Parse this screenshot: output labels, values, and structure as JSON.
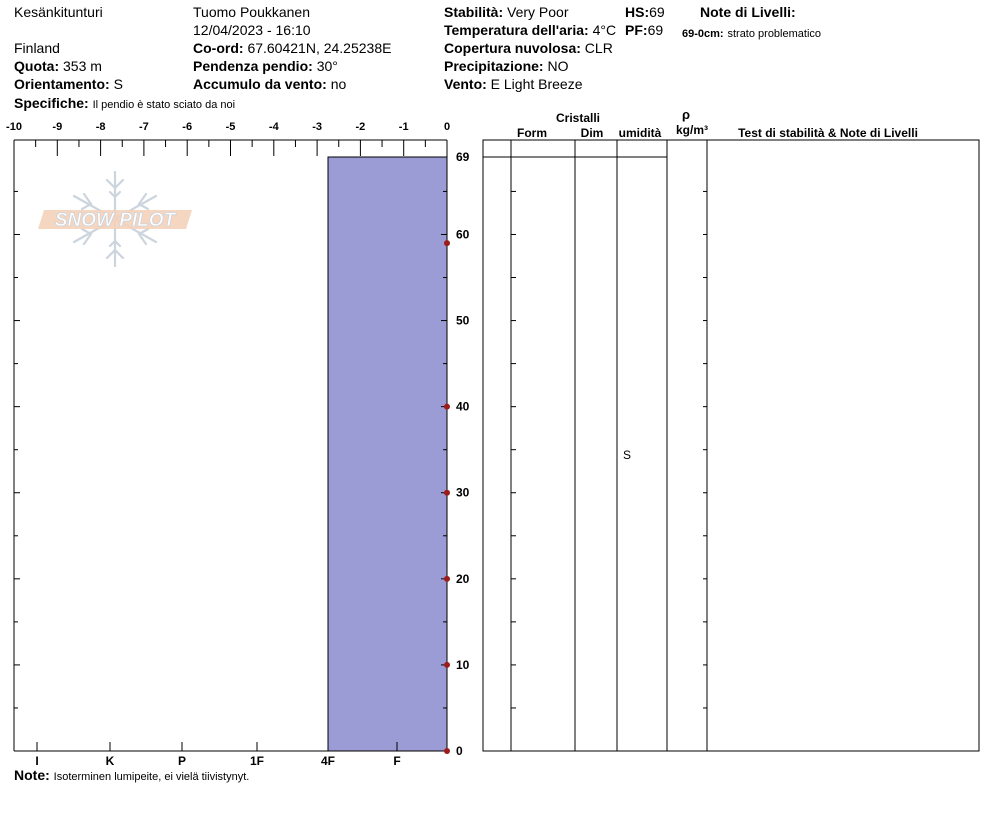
{
  "header": {
    "location": "Kesänkitunturi",
    "country": "Finland",
    "observer": "Tuomo Poukkanen",
    "datetime": "12/04/2023 - 16:10",
    "elevation_label": "Quota:",
    "elevation_value": "353 m",
    "aspect_label": "Orientamento:",
    "aspect_value": "S",
    "specifics_label": "Specifiche:",
    "specifics_value": "Il pendio è stato sciato da noi",
    "coord_label": "Co-ord:",
    "coord_value": "67.60421N, 24.25238E",
    "slope_label": "Pendenza pendio:",
    "slope_value": "30°",
    "wind_loading_label": "Accumulo da vento:",
    "wind_loading_value": "no",
    "stability_label": "Stabilità:",
    "stability_value": "Very Poor",
    "air_temp_label": "Temperatura dell'aria:",
    "air_temp_value": "4°C",
    "sky_label": "Copertura nuvolosa:",
    "sky_value": "CLR",
    "precip_label": "Precipitazione:",
    "precip_value": "NO",
    "wind_label": "Vento:",
    "wind_value": "E Light Breeze",
    "hs_label": "HS:",
    "hs_value": "69",
    "pf_label": "PF:",
    "pf_value": "69",
    "layer_notes_title": "Note di Livelli:",
    "layer_note_depth": "69-0cm:",
    "layer_note_text": "strato problematico"
  },
  "logo": {
    "text": "SNOW PILOT"
  },
  "footer": {
    "note_label": "Note:",
    "note_text": "Isoterminen lumipeite, ei vielä tiivistynyt."
  },
  "table": {
    "group_crystals": "Cristalli",
    "col_form": "Form",
    "col_size": "Dim",
    "col_moisture": "umidità",
    "col_density_symbol": "ρ",
    "col_density_unit": "kg/m³",
    "col_tests": "Test di stabilità & Note di Livelli",
    "layer_moisture": "S"
  },
  "chart_data": {
    "type": "bar",
    "title": "",
    "temperature_axis": {
      "ticks": [
        "-10",
        "-9",
        "-8",
        "-7",
        "-6",
        "-5",
        "-4",
        "-3",
        "-2",
        "-1",
        "0"
      ],
      "range": [
        -10,
        0
      ]
    },
    "hardness_axis": {
      "ticks": [
        "I",
        "K",
        "P",
        "1F",
        "4F",
        "F"
      ]
    },
    "height_axis": {
      "range": [
        0,
        69
      ],
      "ticks": [
        "0",
        "10",
        "20",
        "30",
        "40",
        "50",
        "60",
        "69"
      ]
    },
    "temperature_profile": [
      {
        "height_cm": 59,
        "temp_c": 0
      },
      {
        "height_cm": 40,
        "temp_c": 0
      },
      {
        "height_cm": 30,
        "temp_c": 0
      },
      {
        "height_cm": 20,
        "temp_c": 0
      },
      {
        "height_cm": 10,
        "temp_c": 0
      },
      {
        "height_cm": 0,
        "temp_c": 0
      }
    ],
    "layers": [
      {
        "top_cm": 69,
        "bottom_cm": 0,
        "hardness": "4F",
        "moisture": "S"
      }
    ],
    "colors": {
      "layer_fill": "#9b9bd6",
      "temp_point": "#9c1b1b"
    }
  }
}
